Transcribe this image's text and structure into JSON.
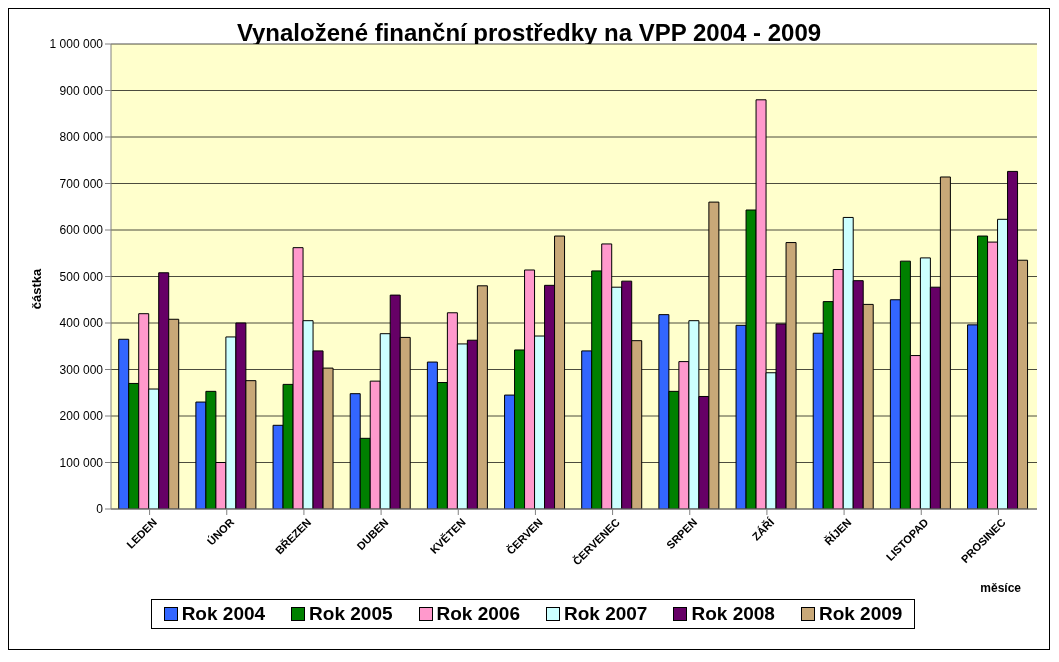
{
  "chart_data": {
    "type": "bar",
    "title": "Vynaložené finanční prostředky na VPP 2004 - 2009",
    "xlabel": "měsíce",
    "ylabel": "částka",
    "categories": [
      "LEDEN",
      "ÚNOR",
      "BŘEZEN",
      "DUBEN",
      "KVĚTEN",
      "ČERVEN",
      "ČERVENEC",
      "SRPEN",
      "ZÁŘÍ",
      "ŘÍJEN",
      "LISTOPAD",
      "PROSINEC"
    ],
    "series": [
      {
        "name": "Rok 2004",
        "color": "#3366ff",
        "values": [
          365000,
          230000,
          180000,
          248000,
          316000,
          245000,
          340000,
          418000,
          395000,
          378000,
          450000,
          396000
        ]
      },
      {
        "name": "Rok 2005",
        "color": "#008000",
        "values": [
          270000,
          253000,
          268000,
          152000,
          272000,
          342000,
          512000,
          253000,
          643000,
          446000,
          533000,
          587000
        ]
      },
      {
        "name": "Rok 2006",
        "color": "#ff99cc",
        "values": [
          420000,
          100000,
          562000,
          275000,
          422000,
          514000,
          570000,
          317000,
          880000,
          515000,
          330000,
          574000
        ]
      },
      {
        "name": "Rok 2007",
        "color": "#ccffff",
        "values": [
          258000,
          370000,
          405000,
          377000,
          355000,
          372000,
          477000,
          405000,
          293000,
          627000,
          540000,
          623000
        ]
      },
      {
        "name": "Rok 2008",
        "color": "#660066",
        "values": [
          508000,
          400000,
          340000,
          460000,
          363000,
          481000,
          490000,
          242000,
          398000,
          491000,
          477000,
          726000
        ]
      },
      {
        "name": "Rok 2009",
        "color": "#c8a878",
        "values": [
          408000,
          276000,
          303000,
          369000,
          480000,
          587000,
          362000,
          660000,
          573000,
          440000,
          714000,
          535000
        ]
      }
    ],
    "ylim": [
      0,
      1000000
    ],
    "yticks": [
      0,
      100000,
      200000,
      300000,
      400000,
      500000,
      600000,
      700000,
      800000,
      900000,
      1000000
    ],
    "grid": "y",
    "legend": "bottom"
  }
}
